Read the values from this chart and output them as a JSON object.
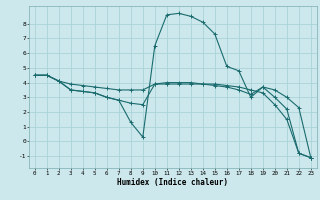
{
  "xlabel": "Humidex (Indice chaleur)",
  "bg_color": "#cce8ec",
  "grid_color": "#aad4d8",
  "line_color": "#1a6b6e",
  "xlim": [
    -0.5,
    23.5
  ],
  "ylim": [
    -1.8,
    9.2
  ],
  "yticks": [
    -1,
    0,
    1,
    2,
    3,
    4,
    5,
    6,
    7,
    8
  ],
  "xticks": [
    0,
    1,
    2,
    3,
    4,
    5,
    6,
    7,
    8,
    9,
    10,
    11,
    12,
    13,
    14,
    15,
    16,
    17,
    18,
    19,
    20,
    21,
    22,
    23
  ],
  "line_flat_x": [
    0,
    1,
    2,
    3,
    4,
    5,
    6,
    7,
    8,
    9,
    10,
    11,
    12,
    13,
    14,
    15,
    16,
    17,
    18,
    19,
    20,
    21,
    22,
    23
  ],
  "line_flat_y": [
    4.5,
    4.5,
    4.1,
    3.9,
    3.8,
    3.7,
    3.6,
    3.5,
    3.5,
    3.5,
    3.9,
    4.0,
    4.0,
    4.0,
    3.9,
    3.9,
    3.8,
    3.7,
    3.5,
    3.3,
    2.5,
    1.5,
    -0.8,
    -1.1
  ],
  "line_mid_x": [
    0,
    1,
    2,
    3,
    4,
    5,
    6,
    7,
    8,
    9,
    10,
    11,
    12,
    13,
    14,
    15,
    16,
    17,
    18,
    19,
    20,
    21,
    22,
    23
  ],
  "line_mid_y": [
    4.5,
    4.5,
    4.1,
    3.5,
    3.4,
    3.3,
    3.0,
    2.8,
    2.6,
    2.5,
    3.9,
    3.9,
    3.9,
    3.9,
    3.9,
    3.8,
    3.7,
    3.5,
    3.2,
    3.7,
    3.5,
    3.0,
    2.3,
    -1.1
  ],
  "line_peak_x": [
    0,
    1,
    2,
    3,
    4,
    5,
    6,
    7,
    8,
    9,
    10,
    11,
    12,
    13,
    14,
    15,
    16,
    17,
    18,
    19,
    20,
    21,
    22,
    23
  ],
  "line_peak_y": [
    4.5,
    4.5,
    4.1,
    3.5,
    3.4,
    3.3,
    3.0,
    2.8,
    1.3,
    0.3,
    6.5,
    8.6,
    8.7,
    8.5,
    8.1,
    7.3,
    5.1,
    4.8,
    3.0,
    3.7,
    3.0,
    2.2,
    -0.8,
    -1.1
  ]
}
